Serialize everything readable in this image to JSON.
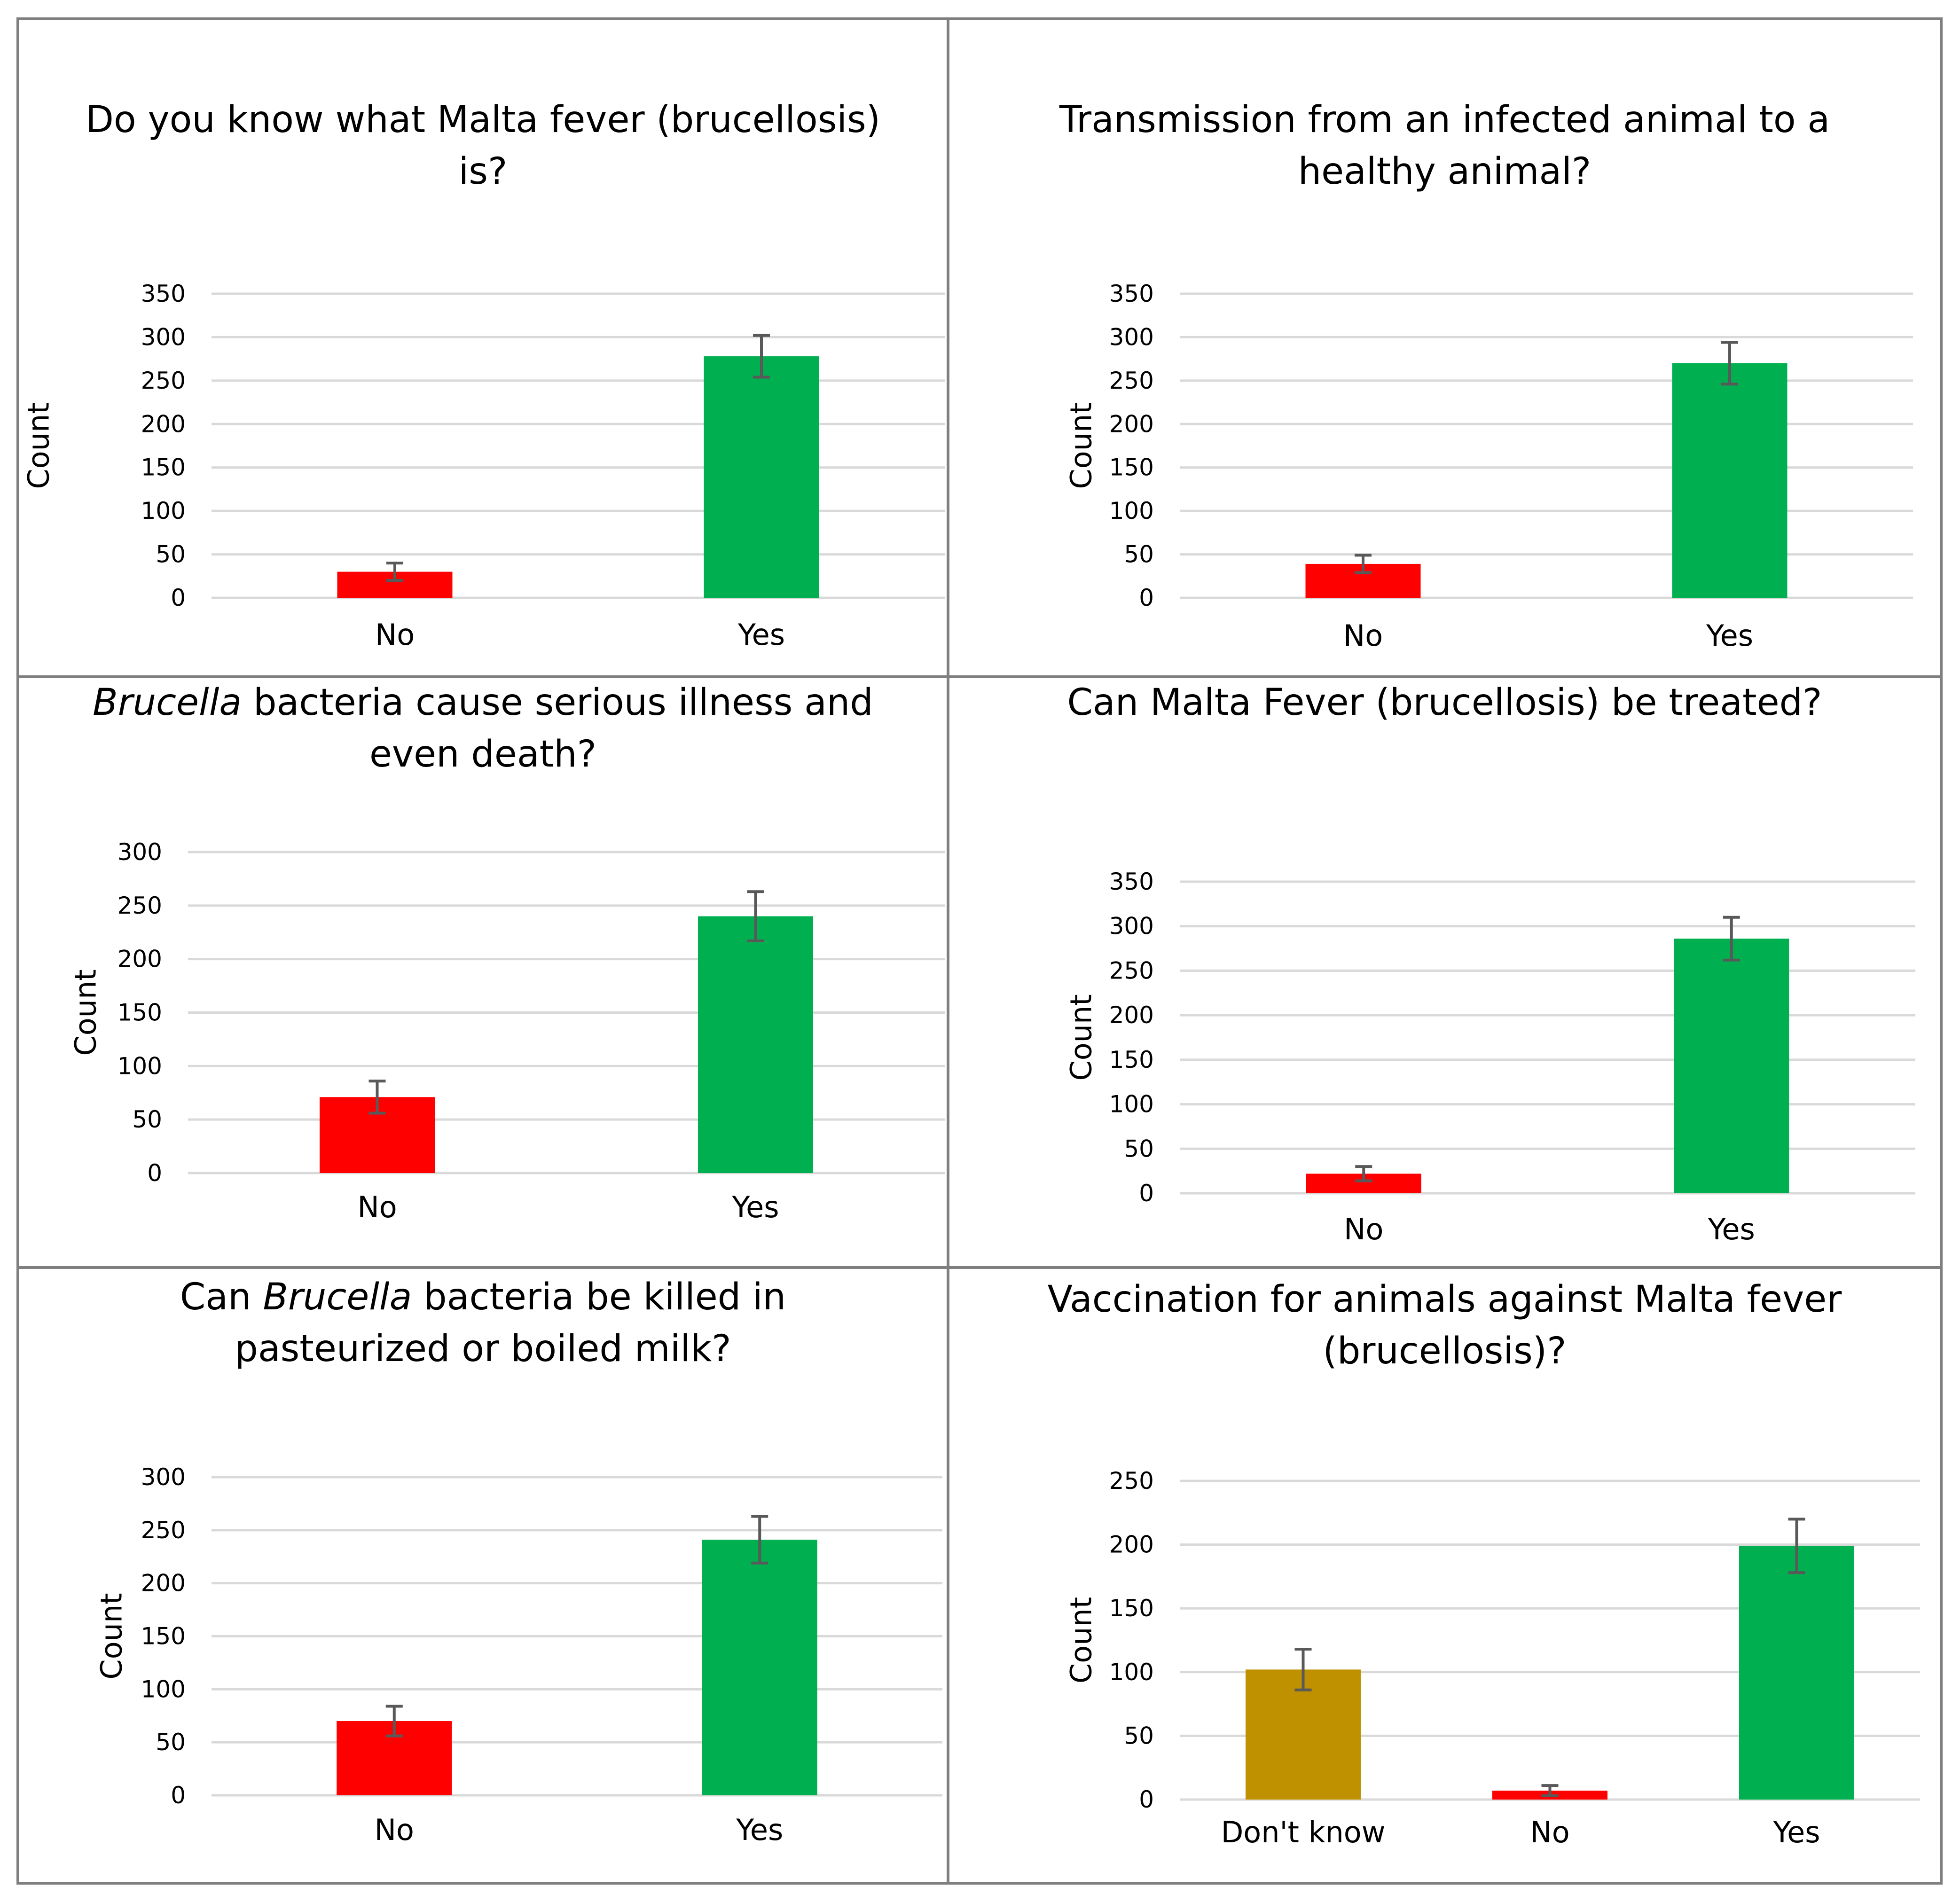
{
  "figure": {
    "border_color": "#7f7f7f",
    "grid_color": "#d9d9d9",
    "errorbar_color": "#595959"
  },
  "chart_data": [
    {
      "type": "bar",
      "title": "Do you know what Malta fever (brucellosis) is?",
      "title_lines": [
        [
          {
            "text": "Do you know what Malta fever (brucellosis)",
            "italic": false
          }
        ],
        [
          {
            "text": "is?",
            "italic": false
          }
        ]
      ],
      "ylabel": "Count",
      "xlabel": "",
      "ylim": [
        0,
        350
      ],
      "yticks": [
        0,
        50,
        100,
        150,
        200,
        250,
        300,
        350
      ],
      "grid": true,
      "categories": [
        "No",
        "Yes"
      ],
      "values": [
        30,
        278
      ],
      "errors": [
        10,
        24
      ],
      "colors": [
        "#ff0000",
        "#00b050"
      ]
    },
    {
      "type": "bar",
      "title": "Transmission from an infected animal to a healthy animal?",
      "title_lines": [
        [
          {
            "text": "Transmission from an infected animal to a",
            "italic": false
          }
        ],
        [
          {
            "text": "healthy animal?",
            "italic": false
          }
        ]
      ],
      "ylabel": "Count",
      "xlabel": "",
      "ylim": [
        0,
        350
      ],
      "yticks": [
        0,
        50,
        100,
        150,
        200,
        250,
        300,
        350
      ],
      "grid": true,
      "categories": [
        "No",
        "Yes"
      ],
      "values": [
        39,
        270
      ],
      "errors": [
        10,
        24
      ],
      "colors": [
        "#ff0000",
        "#00b050"
      ]
    },
    {
      "type": "bar",
      "title": "Brucella bacteria cause serious illness and even death?",
      "title_lines": [
        [
          {
            "text": "Brucella",
            "italic": true
          },
          {
            "text": " bacteria cause serious illness and",
            "italic": false
          }
        ],
        [
          {
            "text": "even death?",
            "italic": false
          }
        ]
      ],
      "ylabel": "Count",
      "xlabel": "",
      "ylim": [
        0,
        300
      ],
      "yticks": [
        0,
        50,
        100,
        150,
        200,
        250,
        300
      ],
      "grid": true,
      "categories": [
        "No",
        "Yes"
      ],
      "values": [
        71,
        240
      ],
      "errors": [
        15,
        23
      ],
      "colors": [
        "#ff0000",
        "#00b050"
      ]
    },
    {
      "type": "bar",
      "title": "Can Malta Fever (brucellosis) be treated?",
      "title_lines": [
        [
          {
            "text": "Can Malta Fever (brucellosis) be treated?",
            "italic": false
          }
        ]
      ],
      "ylabel": "Count",
      "xlabel": "",
      "ylim": [
        0,
        350
      ],
      "yticks": [
        0,
        50,
        100,
        150,
        200,
        250,
        300,
        350
      ],
      "grid": true,
      "categories": [
        "No",
        "Yes"
      ],
      "values": [
        22,
        286
      ],
      "errors": [
        8,
        24
      ],
      "colors": [
        "#ff0000",
        "#00b050"
      ]
    },
    {
      "type": "bar",
      "title": "Can Brucella bacteria be killed in pasteurized or boiled milk?",
      "title_lines": [
        [
          {
            "text": "Can ",
            "italic": false
          },
          {
            "text": "Brucella",
            "italic": true
          },
          {
            "text": " bacteria be killed in",
            "italic": false
          }
        ],
        [
          {
            "text": "pasteurized or boiled milk?",
            "italic": false
          }
        ]
      ],
      "ylabel": "Count",
      "xlabel": "",
      "ylim": [
        0,
        300
      ],
      "yticks": [
        0,
        50,
        100,
        150,
        200,
        250,
        300
      ],
      "grid": true,
      "categories": [
        "No",
        "Yes"
      ],
      "values": [
        70,
        241
      ],
      "errors": [
        14,
        22
      ],
      "colors": [
        "#ff0000",
        "#00b050"
      ]
    },
    {
      "type": "bar",
      "title": "Vaccination for animals against Malta fever (brucellosis)?",
      "title_lines": [
        [
          {
            "text": "Vaccination for animals against Malta fever",
            "italic": false
          }
        ],
        [
          {
            "text": "(brucellosis)?",
            "italic": false
          }
        ]
      ],
      "ylabel": "Count",
      "xlabel": "",
      "ylim": [
        0,
        250
      ],
      "yticks": [
        0,
        50,
        100,
        150,
        200,
        250
      ],
      "grid": true,
      "categories": [
        "Don't know",
        "No",
        "Yes"
      ],
      "values": [
        102,
        7,
        199
      ],
      "errors": [
        16,
        4,
        21
      ],
      "colors": [
        "#bf9000",
        "#ff0000",
        "#00b050"
      ]
    }
  ]
}
